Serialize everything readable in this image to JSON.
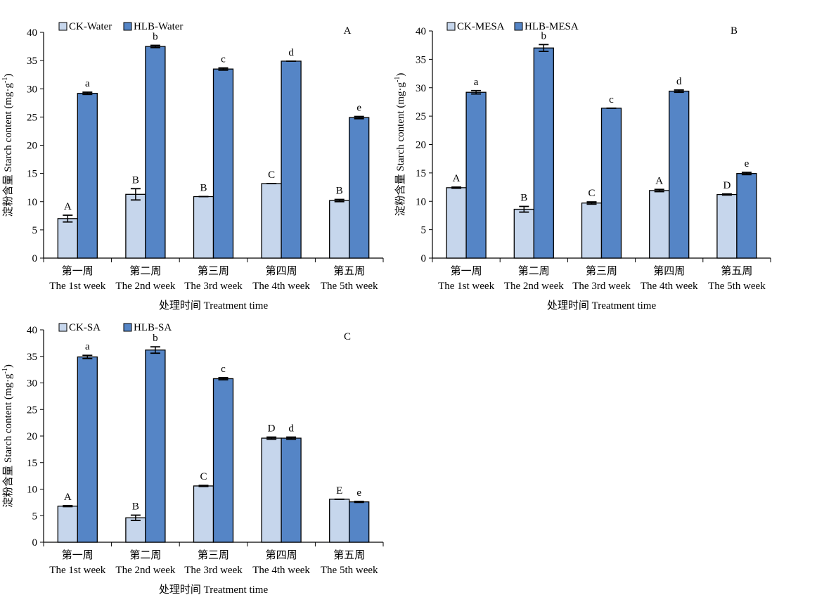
{
  "colors": {
    "ck": "#c6d6ec",
    "hlb": "#5585c6",
    "stroke": "#000000"
  },
  "chart_data": [
    {
      "type": "bar",
      "panel_label": "A",
      "categories": [
        "第一周\nThe 1st week",
        "第二周\nThe 2nd week",
        "第三周\nThe 3rd week",
        "第四周\nThe 4th week",
        "第五周\nThe 5th week"
      ],
      "ylabel": "淀粉含量 Starch content (mg·g-1)",
      "xlabel": "处理时间 Treatment time",
      "ylim": [
        0,
        40
      ],
      "yticks": [
        0,
        5,
        10,
        15,
        20,
        25,
        30,
        35,
        40
      ],
      "legend": "top-left",
      "series": [
        {
          "name": "CK-Water",
          "values": [
            7.0,
            11.3,
            10.9,
            13.2,
            10.2
          ],
          "errors": [
            0.6,
            1.0,
            0.0,
            0.0,
            0.2
          ],
          "letters": [
            "A",
            "B",
            "B",
            "C",
            "B"
          ]
        },
        {
          "name": "HLB-Water",
          "values": [
            29.2,
            37.5,
            33.5,
            34.9,
            24.9
          ],
          "errors": [
            0.2,
            0.2,
            0.2,
            0.0,
            0.2
          ],
          "letters": [
            "a",
            "b",
            "c",
            "d",
            "e"
          ]
        }
      ]
    },
    {
      "type": "bar",
      "panel_label": "B",
      "categories": [
        "第一周\nThe 1st week",
        "第二周\nThe 2nd week",
        "第三周\nThe 3rd week",
        "第四周\nThe 4th week",
        "第五周\nThe 5th week"
      ],
      "ylabel": "淀粉含量 Starch content (mg·g-1)",
      "xlabel": "处理时间 Treatment time",
      "ylim": [
        0,
        40
      ],
      "yticks": [
        0,
        5,
        10,
        15,
        20,
        25,
        30,
        35,
        40
      ],
      "legend": "top-left",
      "series": [
        {
          "name": "CK-MESA",
          "values": [
            12.4,
            8.6,
            9.7,
            11.9,
            11.2
          ],
          "errors": [
            0.1,
            0.5,
            0.2,
            0.2,
            0.1
          ],
          "letters": [
            "A",
            "B",
            "C",
            "A",
            "D"
          ]
        },
        {
          "name": "HLB-MESA",
          "values": [
            29.2,
            37.0,
            26.4,
            29.4,
            14.9
          ],
          "errors": [
            0.3,
            0.6,
            0.0,
            0.2,
            0.2
          ],
          "letters": [
            "a",
            "b",
            "c",
            "d",
            "e"
          ]
        }
      ]
    },
    {
      "type": "bar",
      "panel_label": "C",
      "categories": [
        "第一周\nThe 1st week",
        "第二周\nThe 2nd week",
        "第三周\nThe 3rd week",
        "第四周\nThe 4th week",
        "第五周\nThe 5th week"
      ],
      "ylabel": "淀粉含量 Starch content (mg·g-1)",
      "xlabel": "处理时间 Treatment time",
      "ylim": [
        0,
        40
      ],
      "yticks": [
        0,
        5,
        10,
        15,
        20,
        25,
        30,
        35,
        40
      ],
      "legend": "top-left",
      "series": [
        {
          "name": "CK-SA",
          "values": [
            6.8,
            4.6,
            10.6,
            19.6,
            8.1
          ],
          "errors": [
            0.1,
            0.5,
            0.1,
            0.2,
            0.0
          ],
          "letters": [
            "A",
            "B",
            "C",
            "D",
            "E"
          ]
        },
        {
          "name": "HLB-SA",
          "values": [
            34.9,
            36.2,
            30.8,
            19.6,
            7.6
          ],
          "errors": [
            0.3,
            0.6,
            0.2,
            0.2,
            0.1
          ],
          "letters": [
            "a",
            "b",
            "c",
            "d",
            "e"
          ]
        }
      ]
    }
  ]
}
